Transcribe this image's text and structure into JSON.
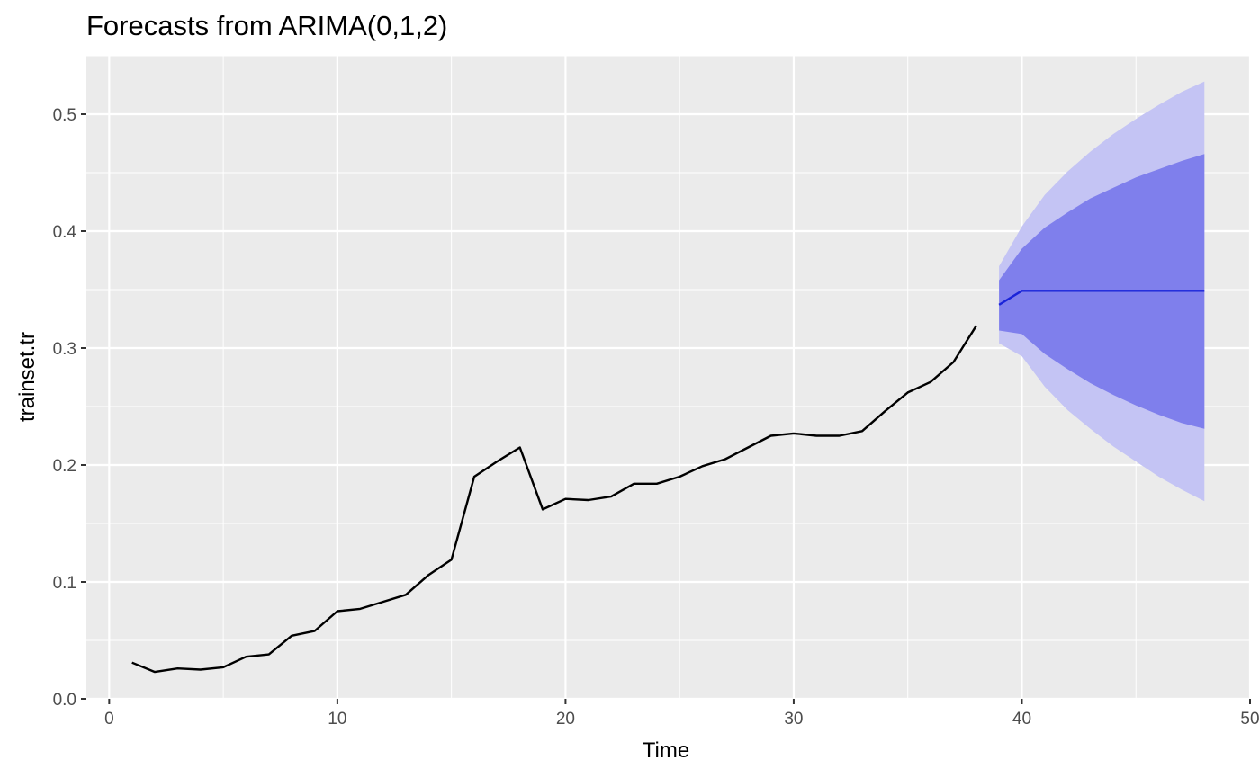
{
  "chart_data": {
    "type": "line",
    "title": "Forecasts from ARIMA(0,1,2)",
    "xlabel": "Time",
    "ylabel": "trainset.tr",
    "xlim": [
      -1,
      50
    ],
    "ylim": [
      0,
      0.55
    ],
    "x_ticks": [
      0,
      10,
      20,
      30,
      40,
      50
    ],
    "x_tick_labels": [
      "0",
      "10",
      "20",
      "30",
      "40",
      "50"
    ],
    "y_ticks": [
      0.0,
      0.1,
      0.2,
      0.3,
      0.4,
      0.5
    ],
    "y_tick_labels": [
      "0.0",
      "0.1",
      "0.2",
      "0.3",
      "0.4",
      "0.5"
    ],
    "grid": true,
    "colors": {
      "panel": "#ebebeb",
      "grid": "#ffffff",
      "observed": "#000000",
      "forecast": "#1a24d9",
      "band80": "#7f7fec",
      "band95": "#c4c4f4",
      "tick": "#333333"
    },
    "series": [
      {
        "name": "observed",
        "x": [
          1,
          2,
          3,
          4,
          5,
          6,
          7,
          8,
          9,
          10,
          11,
          12,
          13,
          14,
          15,
          16,
          17,
          18,
          19,
          20,
          21,
          22,
          23,
          24,
          25,
          26,
          27,
          28,
          29,
          30,
          31,
          32,
          33,
          34,
          35,
          36,
          37,
          38
        ],
        "values": [
          0.031,
          0.023,
          0.026,
          0.025,
          0.027,
          0.036,
          0.038,
          0.054,
          0.058,
          0.075,
          0.077,
          0.083,
          0.089,
          0.106,
          0.119,
          0.19,
          0.203,
          0.215,
          0.162,
          0.171,
          0.17,
          0.173,
          0.184,
          0.184,
          0.19,
          0.199,
          0.205,
          0.215,
          0.225,
          0.227,
          0.225,
          0.225,
          0.229,
          0.246,
          0.262,
          0.271,
          0.288,
          0.319
        ]
      },
      {
        "name": "forecast",
        "x": [
          39,
          40,
          41,
          42,
          43,
          44,
          45,
          46,
          47,
          48
        ],
        "values": [
          0.337,
          0.349,
          0.349,
          0.349,
          0.349,
          0.349,
          0.349,
          0.349,
          0.349,
          0.349
        ]
      }
    ],
    "intervals": [
      {
        "name": "95%",
        "x": [
          39,
          40,
          41,
          42,
          43,
          44,
          45,
          46,
          47,
          48
        ],
        "lower": [
          0.304,
          0.293,
          0.267,
          0.247,
          0.231,
          0.216,
          0.203,
          0.19,
          0.179,
          0.169
        ],
        "upper": [
          0.37,
          0.404,
          0.431,
          0.451,
          0.468,
          0.483,
          0.496,
          0.508,
          0.519,
          0.528
        ]
      },
      {
        "name": "80%",
        "x": [
          39,
          40,
          41,
          42,
          43,
          44,
          45,
          46,
          47,
          48
        ],
        "lower": [
          0.315,
          0.312,
          0.295,
          0.282,
          0.27,
          0.26,
          0.251,
          0.243,
          0.236,
          0.231
        ],
        "upper": [
          0.358,
          0.385,
          0.403,
          0.416,
          0.428,
          0.437,
          0.446,
          0.453,
          0.46,
          0.466
        ]
      }
    ]
  }
}
